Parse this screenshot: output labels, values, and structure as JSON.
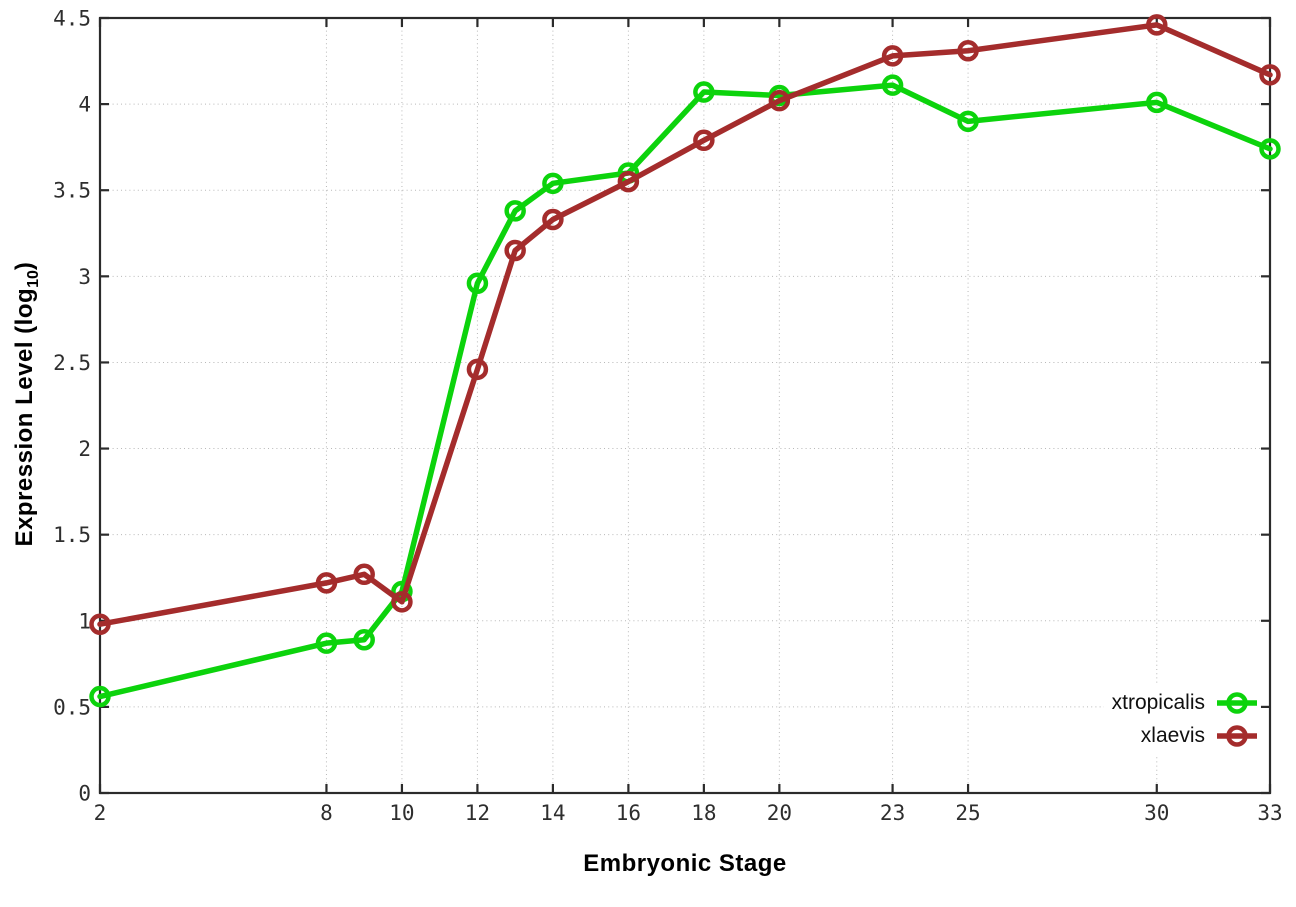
{
  "figure": {
    "background": "#ffffff",
    "axis_color": "#2b2b2b",
    "grid_color": "#b8b8b8",
    "tick_label_color": "#2e2e2e",
    "title_color": "#000000"
  },
  "axes": {
    "x": {
      "title": "Embryonic Stage",
      "tick_labels": [
        "2",
        "8",
        "10",
        "12",
        "14",
        "16",
        "18",
        "20",
        "23",
        "25",
        "30",
        "33"
      ],
      "tick_values": [
        2,
        8,
        10,
        12,
        14,
        16,
        18,
        20,
        23,
        25,
        30,
        33
      ]
    },
    "y": {
      "title_pre": "Expression Level (log",
      "title_sub": "10",
      "title_post": ")",
      "tick_labels": [
        "0",
        "0.5",
        "1",
        "1.5",
        "2",
        "2.5",
        "3",
        "3.5",
        "4",
        "4.5"
      ],
      "tick_values": [
        0,
        0.5,
        1,
        1.5,
        2,
        2.5,
        3,
        3.5,
        4,
        4.5
      ]
    }
  },
  "legend": {
    "items": [
      {
        "label": "xtropicalis",
        "color": "#0cd30c"
      },
      {
        "label": "xlaevis",
        "color": "#a42c2c"
      }
    ]
  },
  "chart_data": {
    "type": "line",
    "x": [
      2,
      8,
      9,
      10,
      12,
      13,
      14,
      16,
      18,
      20,
      23,
      25,
      30,
      33
    ],
    "series": [
      {
        "name": "xtropicalis",
        "color": "#0cd30c",
        "marker": "open-circle",
        "values": [
          0.56,
          0.87,
          0.89,
          1.17,
          2.96,
          3.38,
          3.54,
          3.6,
          4.07,
          4.05,
          4.11,
          3.9,
          4.01,
          3.74
        ]
      },
      {
        "name": "xlaevis",
        "color": "#a42c2c",
        "marker": "open-circle",
        "values": [
          0.98,
          1.22,
          1.27,
          1.11,
          2.46,
          3.15,
          3.33,
          3.55,
          3.79,
          4.02,
          4.28,
          4.31,
          4.46,
          4.17
        ]
      }
    ],
    "title": "",
    "xlabel": "Embryonic Stage",
    "ylabel": "Expression Level (log10)",
    "xlim": [
      2,
      33
    ],
    "ylim": [
      0,
      4.5
    ],
    "grid": true,
    "legend_position": "inside-bottom-right"
  }
}
